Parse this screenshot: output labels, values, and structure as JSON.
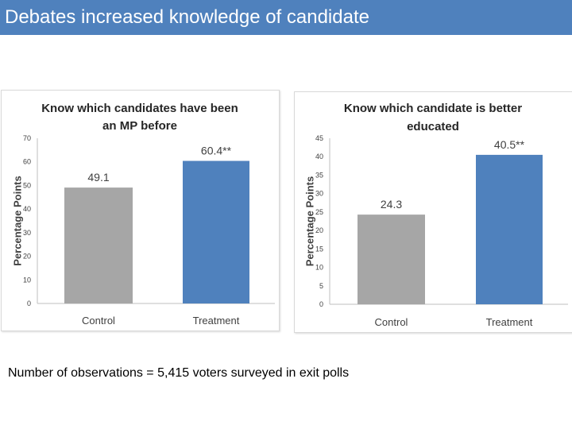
{
  "slide": {
    "title": "Debates increased knowledge of candidate",
    "footnote": "Number of observations = 5,415 voters surveyed in exit polls"
  },
  "colors": {
    "header_bg": "#4f81bd",
    "control_bar": "#a6a6a6",
    "treatment_bar": "#4f81bd"
  },
  "chart_data": [
    {
      "type": "bar",
      "title_lines": [
        "Know which candidates have been",
        "an MP before"
      ],
      "ylabel": "Percentage Points",
      "categories": [
        "Control",
        "Treatment"
      ],
      "values": [
        49.1,
        60.4
      ],
      "value_labels": [
        "49.1",
        "60.4**"
      ],
      "ylim": [
        0,
        70
      ],
      "yticks": [
        0,
        10,
        20,
        30,
        40,
        50,
        60,
        70
      ],
      "bar_colors": [
        "#a6a6a6",
        "#4f81bd"
      ],
      "grid": false
    },
    {
      "type": "bar",
      "title_lines": [
        "Know which candidate is better",
        "educated"
      ],
      "ylabel": "Percentage Points",
      "categories": [
        "Control",
        "Treatment"
      ],
      "values": [
        24.3,
        40.5
      ],
      "value_labels": [
        "24.3",
        "40.5**"
      ],
      "ylim": [
        0,
        45
      ],
      "yticks": [
        0,
        5,
        10,
        15,
        20,
        25,
        30,
        35,
        40,
        45
      ],
      "bar_colors": [
        "#a6a6a6",
        "#4f81bd"
      ],
      "grid": false
    }
  ]
}
